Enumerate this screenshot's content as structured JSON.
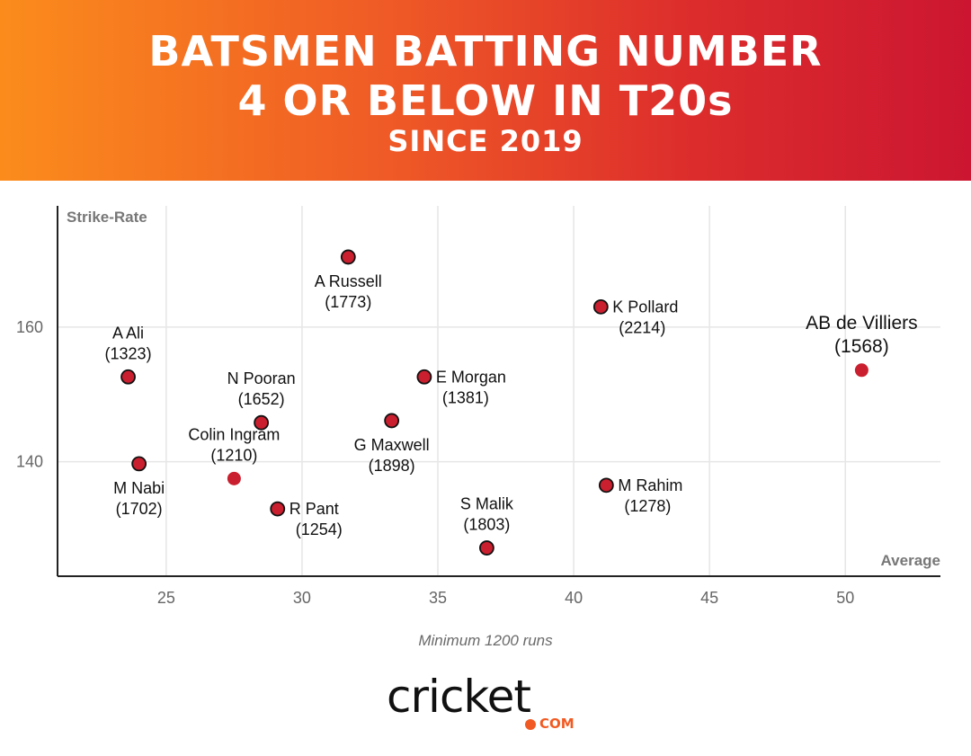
{
  "header": {
    "title_line1": "BATSMEN BATTING NUMBER",
    "title_line2": "4 OR BELOW IN T20s",
    "subtitle": "SINCE 2019"
  },
  "footnote": "Minimum 1200 runs",
  "logo": {
    "word": "cricket",
    "suffix": "COM"
  },
  "colors": {
    "point_fill": "#c91f2e",
    "point_stroke": "#111111",
    "grid": "#e6e6e6",
    "axis": "#222222",
    "tick_label": "#666666",
    "axis_title": "#777777"
  },
  "chart_data": {
    "type": "scatter",
    "xlabel": "Average",
    "ylabel": "Strike-Rate",
    "xlim": [
      21,
      53.5
    ],
    "ylim": [
      123,
      178
    ],
    "xticks": [
      25,
      30,
      35,
      40,
      45,
      50
    ],
    "yticks": [
      140,
      160
    ],
    "grid": true,
    "points": [
      {
        "name": "A Russell",
        "runs": "(1773)",
        "x": 31.7,
        "y": 170.4,
        "label_pos": "below",
        "outlined": true,
        "highlight": false
      },
      {
        "name": "K Pollard",
        "runs": "(2214)",
        "x": 41.0,
        "y": 163.0,
        "label_pos": "right",
        "outlined": true,
        "highlight": false
      },
      {
        "name": "AB de Villiers",
        "runs": "(1568)",
        "x": 50.6,
        "y": 153.6,
        "label_pos": "above",
        "outlined": false,
        "highlight": true
      },
      {
        "name": "A Ali",
        "runs": "(1323)",
        "x": 23.6,
        "y": 152.6,
        "label_pos": "above",
        "outlined": true,
        "highlight": false
      },
      {
        "name": "E Morgan",
        "runs": "(1381)",
        "x": 34.5,
        "y": 152.6,
        "label_pos": "right",
        "outlined": true,
        "highlight": false
      },
      {
        "name": "N Pooran",
        "runs": "(1652)",
        "x": 28.5,
        "y": 145.8,
        "label_pos": "above",
        "outlined": true,
        "highlight": false
      },
      {
        "name": "G Maxwell",
        "runs": "(1898)",
        "x": 33.3,
        "y": 146.1,
        "label_pos": "below",
        "outlined": true,
        "highlight": false
      },
      {
        "name": "M Nabi",
        "runs": "(1702)",
        "x": 24.0,
        "y": 139.7,
        "label_pos": "below",
        "outlined": true,
        "highlight": false
      },
      {
        "name": "Colin Ingram",
        "runs": "(1210)",
        "x": 27.5,
        "y": 137.5,
        "label_pos": "above",
        "outlined": false,
        "highlight": false
      },
      {
        "name": "M Rahim",
        "runs": "(1278)",
        "x": 41.2,
        "y": 136.5,
        "label_pos": "right",
        "outlined": true,
        "highlight": false
      },
      {
        "name": "R Pant",
        "runs": "(1254)",
        "x": 29.1,
        "y": 133.0,
        "label_pos": "right",
        "outlined": true,
        "highlight": false
      },
      {
        "name": "S Malik",
        "runs": "(1803)",
        "x": 36.8,
        "y": 127.2,
        "label_pos": "above",
        "outlined": true,
        "highlight": false
      }
    ]
  }
}
